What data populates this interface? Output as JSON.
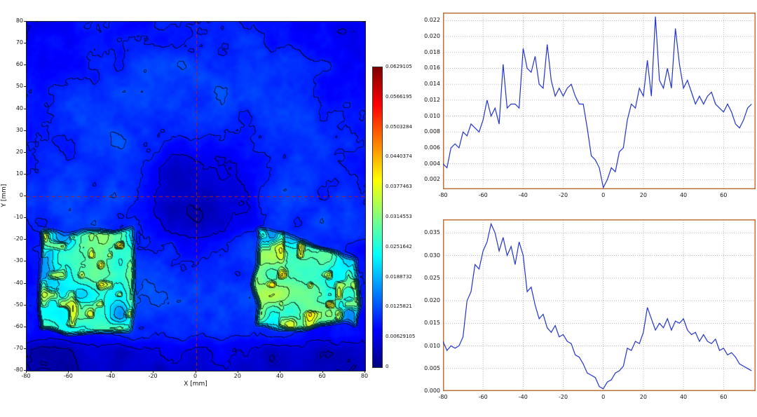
{
  "contour_plot": {
    "xlabel": "X [mm]",
    "ylabel": "Y [mm]",
    "x_ticks": [
      "-80",
      "-60",
      "-40",
      "-20",
      "0",
      "20",
      "40",
      "60",
      "80"
    ],
    "y_ticks": [
      "80",
      "70",
      "60",
      "50",
      "40",
      "30",
      "20",
      "10",
      "0",
      "-10",
      "-20",
      "-30",
      "-40",
      "-50",
      "-60",
      "-70",
      "-80"
    ],
    "x_range": [
      -80,
      80
    ],
    "y_range": [
      -80,
      80
    ],
    "crosshair_color": "#b02020"
  },
  "colorbar": {
    "labels": [
      "0.0629105",
      "0.0566195",
      "0.0503284",
      "0.0440374",
      "0.0377463",
      "0.0314553",
      "0.0251642",
      "0.0188732",
      "0.0125821",
      "0.00629105",
      "0"
    ],
    "min": 0,
    "max": 0.0629105
  },
  "chart_data": [
    {
      "type": "heatmap",
      "title": "",
      "xlabel": "X [mm]",
      "ylabel": "Y [mm]",
      "x_range": [
        -80,
        80
      ],
      "y_range": [
        -80,
        80
      ],
      "value_range": [
        0,
        0.0629105
      ],
      "colormap": "jet",
      "contour_levels": 20,
      "description": "Noisy full-field contour map (DIC-style strain/displacement field): dark-blue low spot at center, cyan mid-field ring, blue edges, and two high-value green/yellow/orange rectangular specimen regions in the lower half; dashed red crosshair at x=0 and y=0.",
      "high_regions": [
        {
          "x": [
            -74,
            -30
          ],
          "y": [
            -62,
            -14
          ]
        },
        {
          "x": [
            28,
            76
          ],
          "y": [
            -60,
            -16
          ],
          "sloped_top": true
        }
      ]
    },
    {
      "type": "line",
      "title": "",
      "line_color": "#2233cc",
      "frame_color": "#c07038",
      "xlim": [
        -80,
        76
      ],
      "ylim": [
        0.0008,
        0.023
      ],
      "x_ticks": [
        "-80",
        "-60",
        "-40",
        "-20",
        "0",
        "20",
        "40",
        "60"
      ],
      "y_ticks": [
        "0.022",
        "0.020",
        "0.018",
        "0.016",
        "0.014",
        "0.012",
        "0.010",
        "0.008",
        "0.006",
        "0.004",
        "0.002"
      ],
      "x": [
        -80,
        -78,
        -76,
        -74,
        -72,
        -70,
        -68,
        -66,
        -64,
        -62,
        -60,
        -58,
        -56,
        -54,
        -52,
        -50,
        -48,
        -46,
        -44,
        -42,
        -40,
        -38,
        -36,
        -34,
        -32,
        -30,
        -28,
        -26,
        -24,
        -22,
        -20,
        -18,
        -16,
        -14,
        -12,
        -10,
        -8,
        -6,
        -4,
        -2,
        0,
        2,
        4,
        6,
        8,
        10,
        12,
        14,
        16,
        18,
        20,
        22,
        24,
        26,
        28,
        30,
        32,
        34,
        36,
        38,
        40,
        42,
        44,
        46,
        48,
        50,
        52,
        54,
        56,
        58,
        60,
        62,
        64,
        66,
        68,
        70,
        72,
        74
      ],
      "y": [
        0.004,
        0.0035,
        0.006,
        0.0065,
        0.006,
        0.008,
        0.0075,
        0.009,
        0.0085,
        0.008,
        0.0095,
        0.012,
        0.01,
        0.011,
        0.009,
        0.0165,
        0.011,
        0.0115,
        0.0115,
        0.011,
        0.0185,
        0.016,
        0.0155,
        0.0175,
        0.014,
        0.0135,
        0.019,
        0.0145,
        0.0125,
        0.0135,
        0.0125,
        0.0135,
        0.014,
        0.0125,
        0.0115,
        0.0115,
        0.0085,
        0.005,
        0.0045,
        0.0035,
        0.001,
        0.002,
        0.0035,
        0.003,
        0.0055,
        0.006,
        0.0095,
        0.0115,
        0.011,
        0.0135,
        0.0125,
        0.017,
        0.0125,
        0.0225,
        0.0145,
        0.0135,
        0.016,
        0.0135,
        0.021,
        0.0165,
        0.0135,
        0.0145,
        0.013,
        0.0115,
        0.0125,
        0.0115,
        0.0125,
        0.013,
        0.0115,
        0.011,
        0.0105,
        0.0115,
        0.0105,
        0.009,
        0.0085,
        0.0095,
        0.011,
        0.0115
      ]
    },
    {
      "type": "line",
      "title": "",
      "line_color": "#2233cc",
      "frame_color": "#c07038",
      "xlim": [
        -80,
        76
      ],
      "ylim": [
        0,
        0.038
      ],
      "x_ticks": [
        "-80",
        "-60",
        "-40",
        "-20",
        "0",
        "20",
        "40",
        "60"
      ],
      "y_ticks": [
        "0.035",
        "0.030",
        "0.025",
        "0.020",
        "0.015",
        "0.010",
        "0.005",
        "0.000"
      ],
      "x": [
        -80,
        -78,
        -76,
        -74,
        -72,
        -70,
        -68,
        -66,
        -64,
        -62,
        -60,
        -58,
        -56,
        -54,
        -52,
        -50,
        -48,
        -46,
        -44,
        -42,
        -40,
        -38,
        -36,
        -34,
        -32,
        -30,
        -28,
        -26,
        -24,
        -22,
        -20,
        -18,
        -16,
        -14,
        -12,
        -10,
        -8,
        -6,
        -4,
        -2,
        0,
        2,
        4,
        6,
        8,
        10,
        12,
        14,
        16,
        18,
        20,
        22,
        24,
        26,
        28,
        30,
        32,
        34,
        36,
        38,
        40,
        42,
        44,
        46,
        48,
        50,
        52,
        54,
        56,
        58,
        60,
        62,
        64,
        66,
        68,
        70,
        72,
        74
      ],
      "y": [
        0.011,
        0.009,
        0.01,
        0.0095,
        0.01,
        0.012,
        0.02,
        0.022,
        0.028,
        0.027,
        0.031,
        0.033,
        0.037,
        0.035,
        0.031,
        0.034,
        0.03,
        0.032,
        0.028,
        0.033,
        0.03,
        0.022,
        0.023,
        0.019,
        0.016,
        0.017,
        0.014,
        0.013,
        0.0145,
        0.012,
        0.0125,
        0.011,
        0.0105,
        0.008,
        0.0075,
        0.006,
        0.004,
        0.0035,
        0.003,
        0.001,
        0.0005,
        0.002,
        0.0025,
        0.004,
        0.0045,
        0.0055,
        0.0095,
        0.009,
        0.011,
        0.0105,
        0.013,
        0.0185,
        0.016,
        0.0135,
        0.015,
        0.014,
        0.016,
        0.0135,
        0.0155,
        0.015,
        0.016,
        0.0135,
        0.0125,
        0.013,
        0.011,
        0.0125,
        0.011,
        0.0105,
        0.0115,
        0.009,
        0.0095,
        0.008,
        0.0085,
        0.0075,
        0.006,
        0.0055,
        0.005,
        0.0045
      ]
    }
  ]
}
